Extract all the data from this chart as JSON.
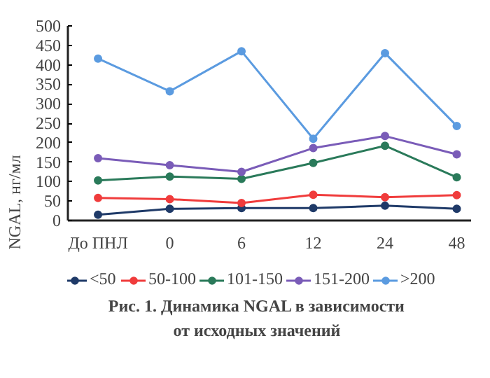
{
  "chart_data": {
    "type": "line",
    "title": "Рис. 1. Динамика NGAL в зависимости\nот исходных значений",
    "ylabel": "NGAL, нг/мл",
    "categories": [
      "До ПНЛ",
      "0",
      "6",
      "12",
      "24",
      "48"
    ],
    "ylim": [
      0,
      500
    ],
    "yticks": [
      0,
      50,
      100,
      150,
      200,
      250,
      300,
      350,
      400,
      450,
      500
    ],
    "grid": false,
    "legend": "bottom",
    "marker": "circle",
    "line_style": "solid",
    "series": [
      {
        "name": "<50",
        "color": "#1f3a68",
        "values": [
          15,
          30,
          32,
          32,
          38,
          30
        ]
      },
      {
        "name": "50-100",
        "color": "#f03c3c",
        "values": [
          58,
          55,
          45,
          66,
          60,
          65
        ]
      },
      {
        "name": "101-150",
        "color": "#2a7a5a",
        "values": [
          103,
          113,
          107,
          148,
          192,
          111
        ]
      },
      {
        "name": "151-200",
        "color": "#7a5cb8",
        "values": [
          160,
          142,
          125,
          186,
          217,
          170
        ]
      },
      {
        "name": ">200",
        "color": "#5b9be0",
        "values": [
          416,
          332,
          435,
          210,
          430,
          243
        ]
      }
    ]
  }
}
